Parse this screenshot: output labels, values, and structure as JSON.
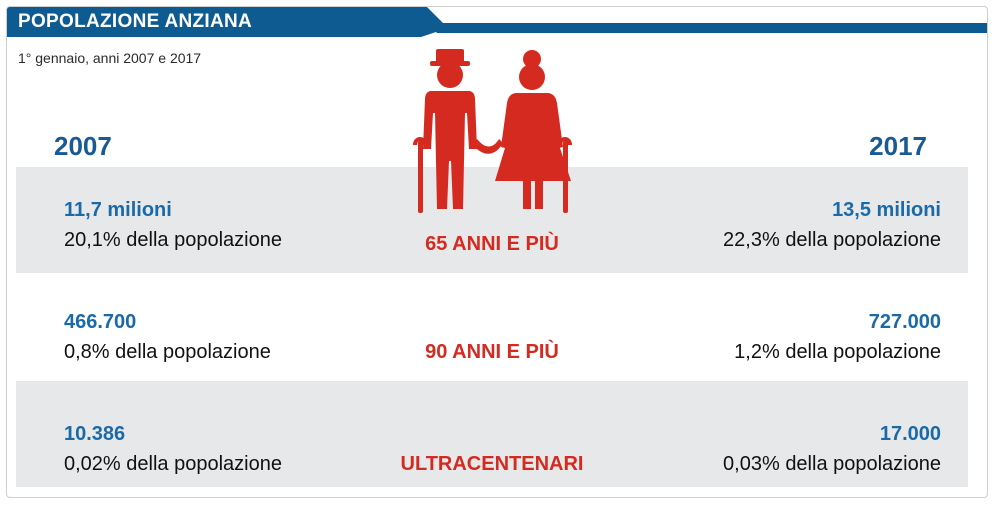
{
  "header": {
    "title": "POPOLAZIONE ANZIANA"
  },
  "subtitle": "1° gennaio, anni 2007 e 2017",
  "colors": {
    "header_blue": "#0e5b92",
    "accent_red": "#d42a20",
    "band_grey": "#e7e8ea",
    "number_blue": "#1a6aa8"
  },
  "icons": [
    "elderly-couple-icon"
  ],
  "chart_data": {
    "type": "table",
    "columns": [
      "2007",
      "2017"
    ],
    "rows": [
      {
        "category": "65 ANNI E PIÙ",
        "y2007": {
          "count": "11,7 milioni",
          "share": "20,1% della popolazione"
        },
        "y2017": {
          "count": "13,5 milioni",
          "share": "22,3% della popolazione"
        }
      },
      {
        "category": "90 ANNI E PIÙ",
        "y2007": {
          "count": "466.700",
          "share": "0,8% della popolazione"
        },
        "y2017": {
          "count": "727.000",
          "share": "1,2% della popolazione"
        }
      },
      {
        "category": "ULTRACENTENARI",
        "y2007": {
          "count": "10.386",
          "share": "0,02% della popolazione"
        },
        "y2017": {
          "count": "17.000",
          "share": "0,03% della popolazione"
        }
      }
    ]
  }
}
